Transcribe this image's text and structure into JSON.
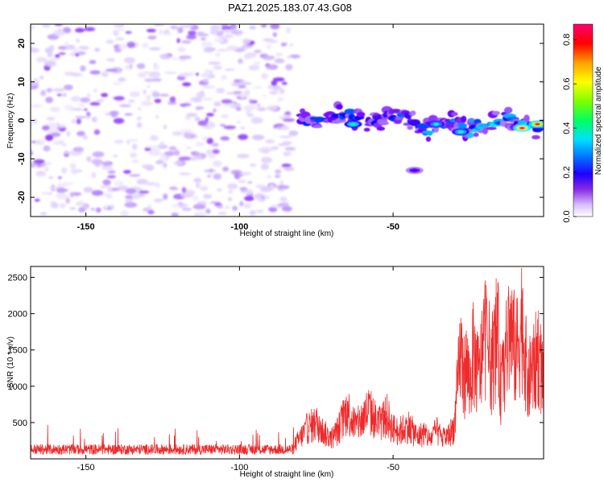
{
  "figure": {
    "title": "PAZ1.2025.183.07.43.G08"
  },
  "chart_data": [
    {
      "type": "heatmap",
      "title": "PAZ1.2025.183.07.43.G08",
      "xlabel": "Height of straight line (km)",
      "ylabel": "Frequency (Hz)",
      "xlim": [
        -168,
        -1
      ],
      "ylim": [
        -25,
        25
      ],
      "x_ticks": [
        -150,
        -100,
        -50
      ],
      "y_ticks": [
        20,
        10,
        0,
        -10,
        -20
      ],
      "colorbar": {
        "label": "Normalized spectral amplitude",
        "range": [
          0.0,
          0.87
        ],
        "ticks": [
          "0.0",
          "0.2",
          "0.4",
          "0.6",
          "0.8"
        ],
        "colormap": [
          "#ffffff",
          "#c0a0ff",
          "#7000ff",
          "#0000ff",
          "#00b0ff",
          "#00ffff",
          "#00ff60",
          "#80ff00",
          "#ffff00",
          "#ffa000",
          "#ff0000",
          "#ff0060"
        ]
      },
      "regions": [
        {
          "x": [
            -168,
            -82
          ],
          "y": [
            -25,
            25
          ],
          "amplitude": [
            0.02,
            0.1
          ],
          "description": "noise"
        },
        {
          "x": [
            -80,
            -1
          ],
          "y_center_start": 1,
          "y_center_end": -1,
          "amplitude": [
            0.1,
            0.87
          ]
        }
      ],
      "peaks": [
        {
          "x": -63,
          "y": -1,
          "amplitude": 0.45
        },
        {
          "x": -36,
          "y": -1,
          "amplitude": 0.4
        },
        {
          "x": -28,
          "y": -3,
          "amplitude": 0.42
        },
        {
          "x": -8,
          "y": -2,
          "amplitude": 0.87
        },
        {
          "x": -3,
          "y": -1,
          "amplitude": 0.8
        },
        {
          "x": -43,
          "y": -13,
          "amplitude": 0.2
        }
      ],
      "grid": false
    },
    {
      "type": "line",
      "xlabel": "Height of straight line (km)",
      "ylabel": "SNR (10 * v/v)",
      "xlim": [
        -168,
        -1
      ],
      "ylim": [
        0,
        2650
      ],
      "x_ticks": [
        -150,
        -100,
        -50
      ],
      "y_ticks": [
        500,
        1000,
        1500,
        2000,
        2500
      ],
      "color": "#ee2a2a",
      "grid": false,
      "series": [
        {
          "x": [
            -168,
            -160,
            -150,
            -140,
            -130,
            -120,
            -110,
            -100,
            -90,
            -85,
            -82,
            -80,
            -78,
            -75,
            -72,
            -70,
            -68,
            -65,
            -62,
            -60,
            -58,
            -55,
            -52,
            -50,
            -48,
            -45,
            -42,
            -40,
            -38,
            -36,
            -34,
            -32,
            -30,
            -29,
            -28,
            -27,
            -26,
            -25,
            -24,
            -22,
            -20,
            -18,
            -16,
            -15,
            -14,
            -12,
            -10,
            -8,
            -6,
            -5,
            -4,
            -3,
            -2,
            -1
          ],
          "values": [
            120,
            130,
            140,
            130,
            135,
            140,
            135,
            140,
            150,
            170,
            260,
            400,
            560,
            650,
            450,
            380,
            520,
            900,
            600,
            720,
            900,
            650,
            780,
            550,
            500,
            600,
            400,
            480,
            350,
            520,
            380,
            420,
            600,
            1300,
            2000,
            1500,
            1700,
            1350,
            1900,
            1500,
            2300,
            1700,
            2350,
            1300,
            1600,
            2400,
            1900,
            2550,
            1250,
            1700,
            1600,
            2000,
            1700,
            1400
          ]
        }
      ]
    }
  ]
}
